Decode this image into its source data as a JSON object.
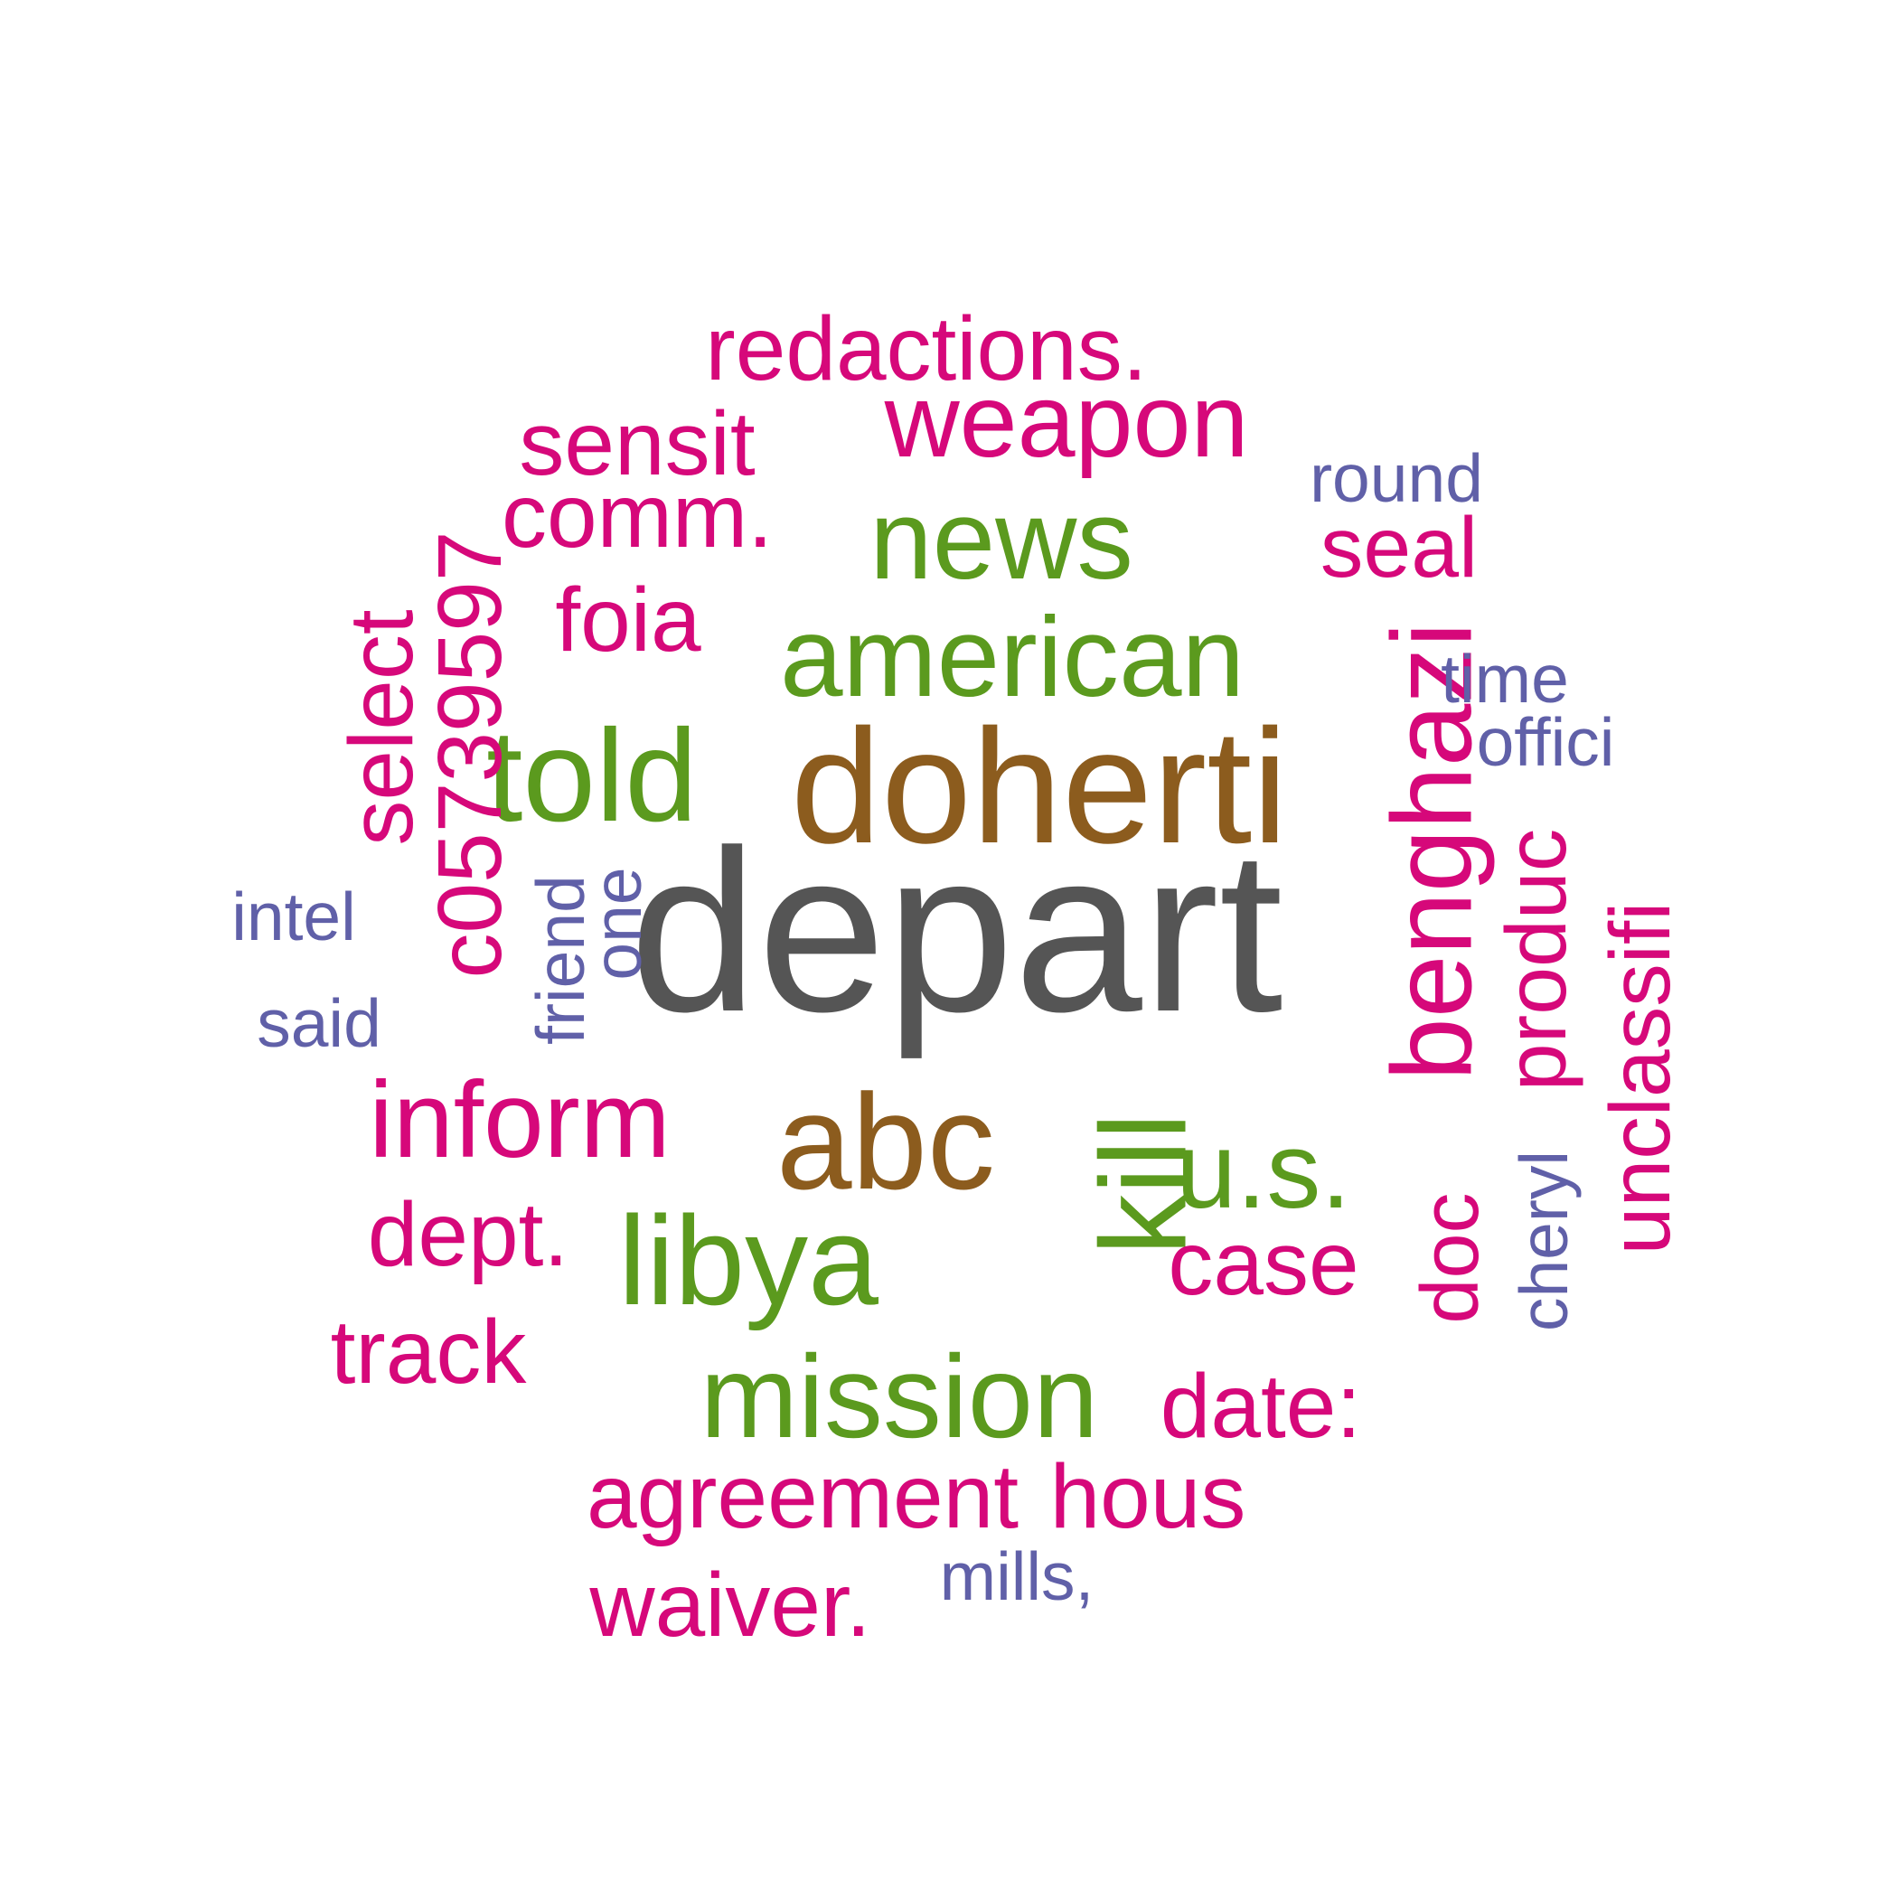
{
  "palette": {
    "dark_gray": "#555555",
    "brown": "#8c5c1e",
    "green": "#5b9a1e",
    "magenta": "#d6087a",
    "purple": "#6060a8"
  },
  "words": [
    {
      "text": "depart",
      "color": "dark_gray"
    },
    {
      "text": "doherti",
      "color": "brown"
    },
    {
      "text": "abc",
      "color": "brown"
    },
    {
      "text": "american",
      "color": "green"
    },
    {
      "text": "news",
      "color": "green"
    },
    {
      "text": "told",
      "color": "green"
    },
    {
      "text": "libya",
      "color": "green"
    },
    {
      "text": "mission",
      "color": "green"
    },
    {
      "text": "u.s.",
      "color": "green"
    },
    {
      "text": "kill",
      "color": "green"
    },
    {
      "text": "redactions.",
      "color": "magenta"
    },
    {
      "text": "weapon",
      "color": "magenta"
    },
    {
      "text": "sensit",
      "color": "magenta"
    },
    {
      "text": "comm.",
      "color": "magenta"
    },
    {
      "text": "foia",
      "color": "magenta"
    },
    {
      "text": "seal",
      "color": "magenta"
    },
    {
      "text": "benghazi",
      "color": "magenta"
    },
    {
      "text": "select",
      "color": "magenta"
    },
    {
      "text": "c05739597",
      "color": "magenta"
    },
    {
      "text": "inform",
      "color": "magenta"
    },
    {
      "text": "dept.",
      "color": "magenta"
    },
    {
      "text": "track",
      "color": "magenta"
    },
    {
      "text": "case",
      "color": "magenta"
    },
    {
      "text": "doc",
      "color": "magenta"
    },
    {
      "text": "produc",
      "color": "magenta"
    },
    {
      "text": "unclassifi",
      "color": "magenta"
    },
    {
      "text": "date:",
      "color": "magenta"
    },
    {
      "text": "agreement",
      "color": "magenta"
    },
    {
      "text": "hous",
      "color": "magenta"
    },
    {
      "text": "waiver.",
      "color": "magenta"
    },
    {
      "text": "round",
      "color": "purple"
    },
    {
      "text": "time",
      "color": "purple"
    },
    {
      "text": "offici",
      "color": "purple"
    },
    {
      "text": "intel",
      "color": "purple"
    },
    {
      "text": "said",
      "color": "purple"
    },
    {
      "text": "friend",
      "color": "purple"
    },
    {
      "text": "one",
      "color": "purple"
    },
    {
      "text": "cheryl",
      "color": "purple"
    },
    {
      "text": "mills,",
      "color": "purple"
    }
  ]
}
